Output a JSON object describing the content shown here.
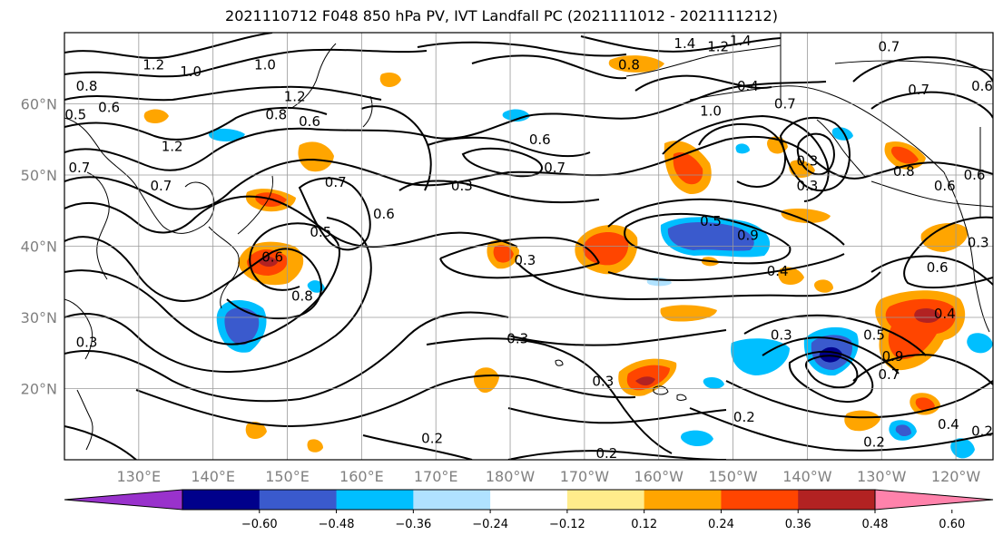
{
  "title": "2021110712 F048 850 hPa PV, IVT Landfall PC (2021111012 - 2021111212)",
  "map": {
    "extent": {
      "lon_west": 120,
      "lon_east": 245,
      "lat_south": 10,
      "lat_north": 70
    },
    "lat_labels": [
      {
        "lat": 60,
        "text": "60°N"
      },
      {
        "lat": 50,
        "text": "50°N"
      },
      {
        "lat": 40,
        "text": "40°N"
      },
      {
        "lat": 30,
        "text": "30°N"
      },
      {
        "lat": 20,
        "text": "20°N"
      }
    ],
    "lon_labels": [
      {
        "lon": 130,
        "text": "130°E"
      },
      {
        "lon": 140,
        "text": "140°E"
      },
      {
        "lon": 150,
        "text": "150°E"
      },
      {
        "lon": 160,
        "text": "160°E"
      },
      {
        "lon": 170,
        "text": "170°E"
      },
      {
        "lon": 180,
        "text": "180°W"
      },
      {
        "lon": 190,
        "text": "170°W"
      },
      {
        "lon": 200,
        "text": "160°W"
      },
      {
        "lon": 210,
        "text": "150°W"
      },
      {
        "lon": 220,
        "text": "140°W"
      },
      {
        "lon": 230,
        "text": "130°W"
      },
      {
        "lon": 240,
        "text": "120°W"
      }
    ],
    "contour_labels": [
      {
        "lon": 132,
        "lat": 65.5,
        "text": "1.2"
      },
      {
        "lon": 137,
        "lat": 64.5,
        "text": "1.0"
      },
      {
        "lon": 147,
        "lat": 65.5,
        "text": "1.0"
      },
      {
        "lon": 123,
        "lat": 62.5,
        "text": "0.8"
      },
      {
        "lon": 126,
        "lat": 59.5,
        "text": "0.6"
      },
      {
        "lon": 121.5,
        "lat": 58.5,
        "text": "0.5"
      },
      {
        "lon": 151,
        "lat": 61,
        "text": "1.2"
      },
      {
        "lon": 148.5,
        "lat": 58.5,
        "text": "0.8"
      },
      {
        "lon": 153,
        "lat": 57.5,
        "text": "0.6"
      },
      {
        "lon": 134.5,
        "lat": 54,
        "text": "1.2"
      },
      {
        "lon": 133,
        "lat": 48.5,
        "text": "0.7"
      },
      {
        "lon": 122,
        "lat": 51,
        "text": "0.7"
      },
      {
        "lon": 156.5,
        "lat": 49,
        "text": "0.7"
      },
      {
        "lon": 163,
        "lat": 44.5,
        "text": "0.6"
      },
      {
        "lon": 173.5,
        "lat": 48.5,
        "text": "0.3"
      },
      {
        "lon": 184,
        "lat": 55,
        "text": "0.6"
      },
      {
        "lon": 186,
        "lat": 51,
        "text": "0.7"
      },
      {
        "lon": 196,
        "lat": 65.5,
        "text": "0.8"
      },
      {
        "lon": 203.5,
        "lat": 68.5,
        "text": "1.4"
      },
      {
        "lon": 208,
        "lat": 68,
        "text": "1.2"
      },
      {
        "lon": 211,
        "lat": 70,
        "text": "1.4"
      },
      {
        "lon": 212,
        "lat": 62.5,
        "text": "0.4"
      },
      {
        "lon": 207,
        "lat": 59,
        "text": "1.0"
      },
      {
        "lon": 217,
        "lat": 60,
        "text": "0.7"
      },
      {
        "lon": 220,
        "lat": 52,
        "text": "0.3"
      },
      {
        "lon": 220,
        "lat": 48.5,
        "text": "0.3"
      },
      {
        "lon": 231,
        "lat": 68,
        "text": "0.7"
      },
      {
        "lon": 235,
        "lat": 62,
        "text": "0.7"
      },
      {
        "lon": 244,
        "lat": 62.5,
        "text": "0.6"
      },
      {
        "lon": 233,
        "lat": 50.5,
        "text": "0.8"
      },
      {
        "lon": 238.5,
        "lat": 48.5,
        "text": "0.6"
      },
      {
        "lon": 242.5,
        "lat": 50,
        "text": "0.6"
      },
      {
        "lon": 154.5,
        "lat": 42,
        "text": "0.5"
      },
      {
        "lon": 148,
        "lat": 38.5,
        "text": "0.6"
      },
      {
        "lon": 152,
        "lat": 33,
        "text": "0.8"
      },
      {
        "lon": 182,
        "lat": 38,
        "text": "0.3"
      },
      {
        "lon": 207,
        "lat": 43.5,
        "text": "0.5"
      },
      {
        "lon": 212,
        "lat": 41.5,
        "text": "0.9"
      },
      {
        "lon": 216,
        "lat": 36.5,
        "text": "0.4"
      },
      {
        "lon": 237.5,
        "lat": 37,
        "text": "0.6"
      },
      {
        "lon": 243,
        "lat": 40.5,
        "text": "0.3"
      },
      {
        "lon": 216.5,
        "lat": 27.5,
        "text": "0.3"
      },
      {
        "lon": 229,
        "lat": 27.5,
        "text": "0.5"
      },
      {
        "lon": 238.5,
        "lat": 30.5,
        "text": "0.4"
      },
      {
        "lon": 231.5,
        "lat": 24.5,
        "text": "0.9"
      },
      {
        "lon": 231,
        "lat": 22,
        "text": "0.7"
      },
      {
        "lon": 123,
        "lat": 26.5,
        "text": "0.3"
      },
      {
        "lon": 181,
        "lat": 27,
        "text": "0.3"
      },
      {
        "lon": 192.5,
        "lat": 21,
        "text": "0.3"
      },
      {
        "lon": 211.5,
        "lat": 16,
        "text": "0.2"
      },
      {
        "lon": 169.5,
        "lat": 13,
        "text": "0.2"
      },
      {
        "lon": 193,
        "lat": 10.5,
        "text": "0.2"
      },
      {
        "lon": 229,
        "lat": 12.5,
        "text": "0.2"
      },
      {
        "lon": 239,
        "lat": 15,
        "text": "0.4"
      },
      {
        "lon": 245,
        "lat": 14,
        "text": "0.2"
      }
    ]
  },
  "colorbar": {
    "colors": [
      "#9932cc",
      "#00008b",
      "#3a5acd",
      "#00bfff",
      "#b0e2ff",
      "#ffffff",
      "#ffec8b",
      "#ffa500",
      "#ff4500",
      "#b22222",
      "#ff82ab"
    ],
    "ticks": [
      "−0.60",
      "−0.48",
      "−0.36",
      "−0.24",
      "−0.12",
      "0.12",
      "0.24",
      "0.36",
      "0.48",
      "0.60"
    ]
  }
}
